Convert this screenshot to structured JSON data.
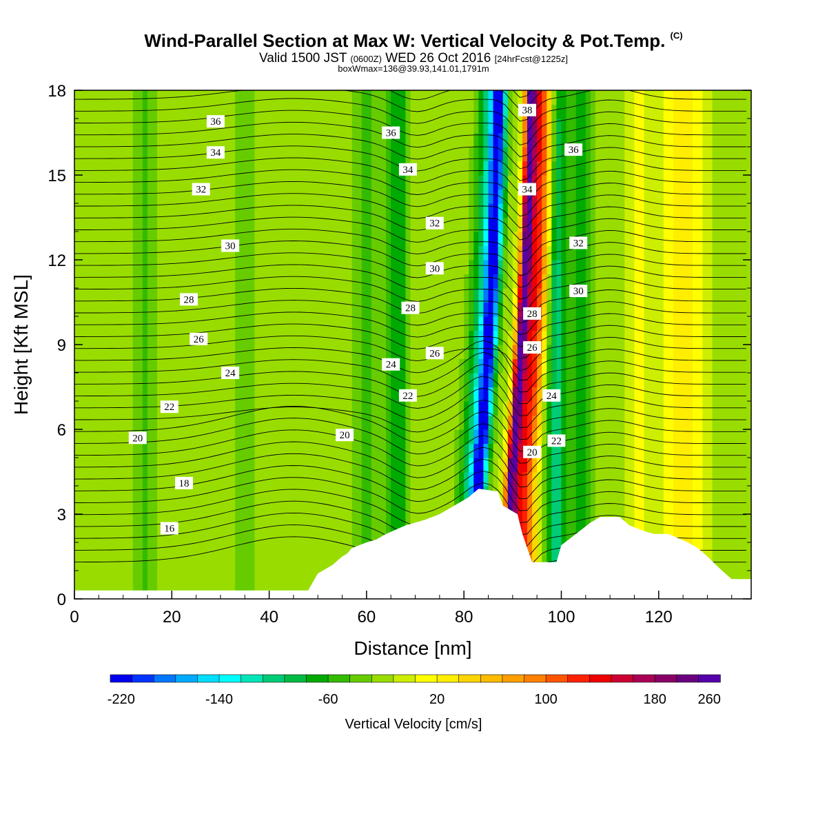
{
  "header": {
    "title_main": "Wind-Parallel Section at Max W: Vertical Velocity & Pot.Temp.",
    "title_mark": "(C)",
    "valid_a": "Valid 1500 JST",
    "valid_utc": "(0600Z)",
    "valid_b": "WED 26 Oct 2016",
    "forecast": "[24hrFcst@1225z]",
    "box_info": "boxWmax=136@39.93,141.01,1791m"
  },
  "chart_data": {
    "type": "heatmap",
    "title": "Wind-Parallel Section at Max W: Vertical Velocity & Pot.Temp.",
    "xlabel": "Distance [nm]",
    "ylabel": "Height [Kft MSL]",
    "xlim": [
      0,
      139
    ],
    "ylim": [
      0,
      18
    ],
    "x_ticks": [
      0,
      20,
      40,
      60,
      80,
      100,
      120
    ],
    "y_ticks": [
      0,
      3,
      6,
      9,
      12,
      15,
      18
    ],
    "background_w_cms": 15,
    "w_bands": [
      {
        "x": 14.5,
        "w": 2.5,
        "v": -40
      },
      {
        "x": 35,
        "w": 3,
        "v": -30
      },
      {
        "x": 60,
        "w": 3.5,
        "v": -40
      },
      {
        "x": 66.5,
        "w": 2.2,
        "v": -70
      },
      {
        "x": 83,
        "w": 1.6,
        "v": -220
      },
      {
        "x": 81,
        "w": 2.6,
        "v": -90
      },
      {
        "x": 89.5,
        "w": 1.2,
        "v": 260
      },
      {
        "x": 91.5,
        "w": 1.8,
        "v": 160
      },
      {
        "x": 93.5,
        "w": 1.6,
        "v": 90
      },
      {
        "x": 99,
        "w": 2.2,
        "v": -100
      },
      {
        "x": 104,
        "w": 2.6,
        "v": -60
      },
      {
        "x": 116,
        "w": 2.5,
        "v": 30
      },
      {
        "x": 125,
        "w": 4,
        "v": 60
      }
    ],
    "terrain": [
      [
        0,
        0.3
      ],
      [
        48,
        0.3
      ],
      [
        49,
        0.6
      ],
      [
        50,
        0.9
      ],
      [
        52,
        1.1
      ],
      [
        53,
        1.2
      ],
      [
        54,
        1.35
      ],
      [
        55,
        1.5
      ],
      [
        56,
        1.6
      ],
      [
        57,
        1.8
      ],
      [
        60,
        2.0
      ],
      [
        62,
        2.1
      ],
      [
        64,
        2.3
      ],
      [
        68,
        2.6
      ],
      [
        72,
        2.8
      ],
      [
        75,
        3.0
      ],
      [
        78,
        3.3
      ],
      [
        81,
        3.6
      ],
      [
        83,
        3.9
      ],
      [
        87,
        3.8
      ],
      [
        88,
        3.3
      ],
      [
        91,
        3.0
      ],
      [
        92,
        2.3
      ],
      [
        94,
        1.3
      ],
      [
        96,
        1.3
      ],
      [
        99,
        1.3
      ],
      [
        100,
        1.9
      ],
      [
        103,
        2.3
      ],
      [
        106,
        2.7
      ],
      [
        108,
        2.9
      ],
      [
        112,
        2.9
      ],
      [
        114,
        2.6
      ],
      [
        117,
        2.4
      ],
      [
        119,
        2.3
      ],
      [
        122,
        2.3
      ],
      [
        126,
        2.0
      ],
      [
        128,
        1.8
      ],
      [
        130,
        1.5
      ],
      [
        133,
        1.0
      ],
      [
        135,
        0.7
      ],
      [
        139,
        0.7
      ]
    ],
    "theta_contour_labels": [
      {
        "v": "16",
        "x": 19.5,
        "y": 2.5
      },
      {
        "v": "18",
        "x": 22.5,
        "y": 4.1
      },
      {
        "v": "20",
        "x": 13,
        "y": 5.7
      },
      {
        "v": "20",
        "x": 55.5,
        "y": 5.8
      },
      {
        "v": "20",
        "x": 94,
        "y": 5.2
      },
      {
        "v": "22",
        "x": 19.5,
        "y": 6.8
      },
      {
        "v": "22",
        "x": 68.5,
        "y": 7.2
      },
      {
        "v": "22",
        "x": 99,
        "y": 5.6
      },
      {
        "v": "24",
        "x": 32,
        "y": 8.0
      },
      {
        "v": "24",
        "x": 65,
        "y": 8.3
      },
      {
        "v": "24",
        "x": 98,
        "y": 7.2
      },
      {
        "v": "26",
        "x": 25.5,
        "y": 9.2
      },
      {
        "v": "26",
        "x": 74,
        "y": 8.7
      },
      {
        "v": "26",
        "x": 94,
        "y": 8.9
      },
      {
        "v": "28",
        "x": 23.5,
        "y": 10.6
      },
      {
        "v": "28",
        "x": 69,
        "y": 10.3
      },
      {
        "v": "28",
        "x": 94,
        "y": 10.1
      },
      {
        "v": "30",
        "x": 32,
        "y": 12.5
      },
      {
        "v": "30",
        "x": 74,
        "y": 11.7
      },
      {
        "v": "30",
        "x": 103.5,
        "y": 10.9
      },
      {
        "v": "32",
        "x": 26,
        "y": 14.5
      },
      {
        "v": "32",
        "x": 74,
        "y": 13.3
      },
      {
        "v": "32",
        "x": 103.5,
        "y": 12.6
      },
      {
        "v": "34",
        "x": 29,
        "y": 15.8
      },
      {
        "v": "34",
        "x": 68.5,
        "y": 15.2
      },
      {
        "v": "34",
        "x": 93,
        "y": 14.5
      },
      {
        "v": "36",
        "x": 29,
        "y": 16.9
      },
      {
        "v": "36",
        "x": 65,
        "y": 16.5
      },
      {
        "v": "36",
        "x": 102.5,
        "y": 15.9
      },
      {
        "v": "38",
        "x": 93,
        "y": 17.3
      }
    ],
    "colorbar": {
      "label": "Vertical Velocity [cm/s]",
      "tick_labels": [
        "-220",
        "-140",
        "-60",
        "20",
        "100",
        "180",
        "260"
      ],
      "colors": [
        "#0000ee",
        "#0033ff",
        "#0077ff",
        "#00aaff",
        "#00ddff",
        "#00ffff",
        "#00e6b8",
        "#00cc77",
        "#00bb44",
        "#00aa00",
        "#33bb00",
        "#66cc00",
        "#99dd00",
        "#ccee00",
        "#ffff00",
        "#ffee00",
        "#ffd500",
        "#ffbb00",
        "#ff9f00",
        "#ff8000",
        "#ff5500",
        "#ff2200",
        "#ee0000",
        "#cc0033",
        "#aa0055",
        "#880066",
        "#6a0080",
        "#5500aa"
      ]
    }
  }
}
